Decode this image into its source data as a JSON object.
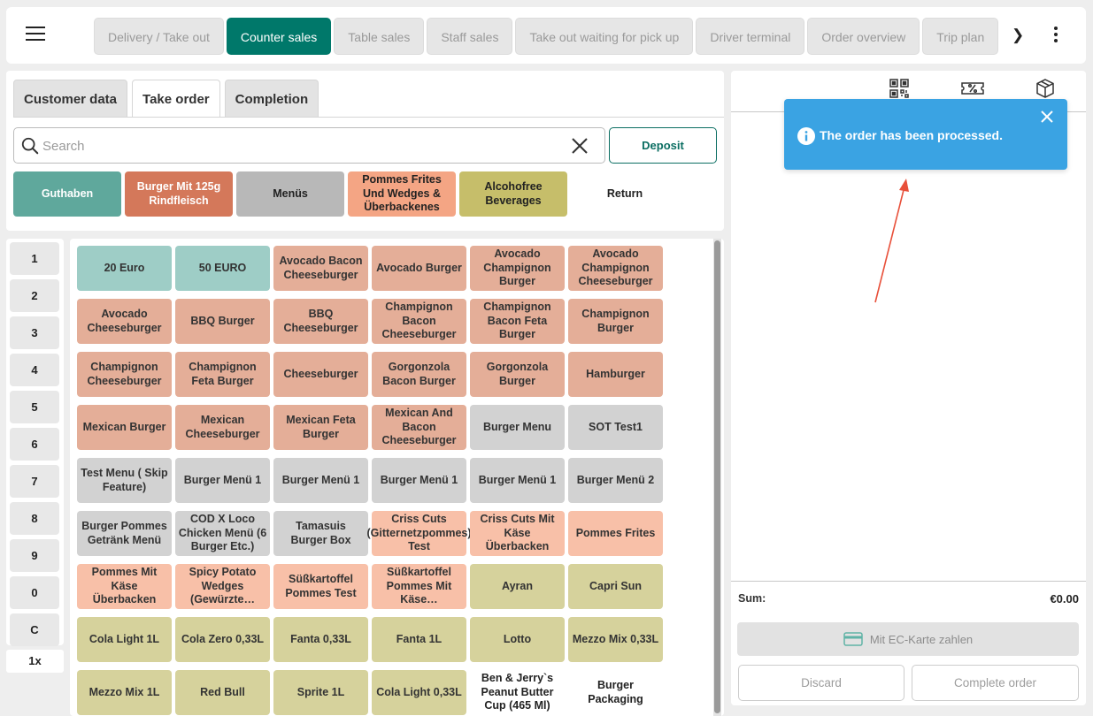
{
  "topbar": {
    "tabs": [
      {
        "label": "Delivery / Take out",
        "active": false
      },
      {
        "label": "Counter sales",
        "active": true
      },
      {
        "label": "Table sales",
        "active": false
      },
      {
        "label": "Staff sales",
        "active": false
      },
      {
        "label": "Take out waiting for pick up",
        "active": false
      },
      {
        "label": "Driver terminal",
        "active": false
      },
      {
        "label": "Order overview",
        "active": false
      },
      {
        "label": "Trip plan",
        "active": false
      }
    ],
    "next_glyph": "❯",
    "colors": {
      "active_tab": "#00786a"
    }
  },
  "order_panel": {
    "tabs": [
      "Customer data",
      "Take order",
      "Completion"
    ],
    "active_tab": "Take order",
    "search_placeholder": "Search",
    "search_value": "",
    "deposit_label": "Deposit",
    "categories": [
      {
        "label": "Guthaben",
        "color": "#5fa89c"
      },
      {
        "label": "Burger Mit 125g Rindfleisch",
        "color": "#d4785a"
      },
      {
        "label": "Menüs",
        "color": "#b8b8b8"
      },
      {
        "label": "Pommes Frites Und Wedges & Überbackenes",
        "color": "#f4a584"
      },
      {
        "label": "Alcohofree Beverages",
        "color": "#c6be6a"
      },
      {
        "label": "Return",
        "color": "#ffffff"
      }
    ]
  },
  "numpad": {
    "keys": [
      "1",
      "2",
      "3",
      "4",
      "5",
      "6",
      "7",
      "8",
      "9",
      "0",
      "C"
    ],
    "multiplier": "1x"
  },
  "products": [
    {
      "label": "20 Euro",
      "color": "#9ecdc6"
    },
    {
      "label": "50 EURO",
      "color": "#9ecdc6"
    },
    {
      "label": "Avocado Bacon Cheeseburger",
      "color": "#e4ae98"
    },
    {
      "label": "Avocado Burger",
      "color": "#e4ae98"
    },
    {
      "label": "Avocado Champignon Burger",
      "color": "#e4ae98"
    },
    {
      "label": "Avocado Champignon Cheeseburger",
      "color": "#e4ae98"
    },
    {
      "label": "Avocado Cheeseburger",
      "color": "#e4ae98"
    },
    {
      "label": "BBQ Burger",
      "color": "#e4ae98"
    },
    {
      "label": "BBQ Cheeseburger",
      "color": "#e4ae98"
    },
    {
      "label": "Champignon Bacon Cheeseburger",
      "color": "#e4ae98"
    },
    {
      "label": "Champignon Bacon Feta Burger",
      "color": "#e4ae98"
    },
    {
      "label": "Champignon Burger",
      "color": "#e4ae98"
    },
    {
      "label": "Champignon Cheeseburger",
      "color": "#e4ae98"
    },
    {
      "label": "Champignon Feta Burger",
      "color": "#e4ae98"
    },
    {
      "label": "Cheeseburger",
      "color": "#e4ae98"
    },
    {
      "label": "Gorgonzola Bacon Burger",
      "color": "#e4ae98"
    },
    {
      "label": "Gorgonzola Burger",
      "color": "#e4ae98"
    },
    {
      "label": "Hamburger",
      "color": "#e4ae98"
    },
    {
      "label": "Mexican Burger",
      "color": "#e4ae98"
    },
    {
      "label": "Mexican Cheeseburger",
      "color": "#e4ae98"
    },
    {
      "label": "Mexican Feta Burger",
      "color": "#e4ae98"
    },
    {
      "label": "Mexican And Bacon Cheeseburger",
      "color": "#e4ae98"
    },
    {
      "label": "Burger Menu",
      "color": "#d2d2d2"
    },
    {
      "label": "SOT Test1",
      "color": "#d2d2d2"
    },
    {
      "label": "Test Menu ( Skip Feature)",
      "color": "#d2d2d2"
    },
    {
      "label": "Burger Menü 1",
      "color": "#d2d2d2"
    },
    {
      "label": "Burger Menü 1",
      "color": "#d2d2d2"
    },
    {
      "label": "Burger Menü 1",
      "color": "#d2d2d2"
    },
    {
      "label": "Burger Menü 1",
      "color": "#d2d2d2"
    },
    {
      "label": "Burger Menü 2",
      "color": "#d2d2d2"
    },
    {
      "label": "Burger Pommes Getränk Menü",
      "color": "#d2d2d2"
    },
    {
      "label": "COD X Loco Chicken Menü (6 Burger Etc.)",
      "color": "#d2d2d2"
    },
    {
      "label": "Tamasuis Burger Box",
      "color": "#d2d2d2"
    },
    {
      "label": "Criss Cuts (Gitternetzpommes) Test",
      "color": "#f8c0a8"
    },
    {
      "label": "Criss Cuts Mit Käse Überbacken",
      "color": "#f8c0a8"
    },
    {
      "label": "Pommes Frites",
      "color": "#f8c0a8"
    },
    {
      "label": "Pommes Mit Käse Überbacken",
      "color": "#f8c0a8"
    },
    {
      "label": "Spicy Potato Wedges (Gewürzte…",
      "color": "#f8c0a8"
    },
    {
      "label": "Süßkartoffel Pommes Test",
      "color": "#f8c0a8"
    },
    {
      "label": "Süßkartoffel Pommes Mit Käse…",
      "color": "#f8c0a8"
    },
    {
      "label": "Ayran",
      "color": "#d6d29c"
    },
    {
      "label": "Capri Sun",
      "color": "#d6d29c"
    },
    {
      "label": "Cola Light 1L",
      "color": "#d6d29c"
    },
    {
      "label": "Cola Zero 0,33L",
      "color": "#d6d29c"
    },
    {
      "label": "Fanta 0,33L",
      "color": "#d6d29c"
    },
    {
      "label": "Fanta 1L",
      "color": "#d6d29c"
    },
    {
      "label": "Lotto",
      "color": "#d6d29c"
    },
    {
      "label": "Mezzo Mix 0,33L",
      "color": "#d6d29c"
    },
    {
      "label": "Mezzo Mix 1L",
      "color": "#d6d29c"
    },
    {
      "label": "Red Bull",
      "color": "#d6d29c"
    },
    {
      "label": "Sprite 1L",
      "color": "#d6d29c"
    },
    {
      "label": "Cola Light 0,33L",
      "color": "#d6d29c"
    },
    {
      "label": "Ben & Jerry`s Peanut Butter Cup (465 Ml)",
      "color": "#ffffff"
    },
    {
      "label": "Burger Packaging",
      "color": "#ffffff"
    }
  ],
  "cart": {
    "sum_label": "Sum:",
    "sum_value": "€0.00",
    "ec_button_label": "Mit EC-Karte zahlen",
    "discard_label": "Discard",
    "complete_label": "Complete order"
  },
  "toast": {
    "message": "The order has been processed.",
    "color": "#3aa3e3"
  }
}
